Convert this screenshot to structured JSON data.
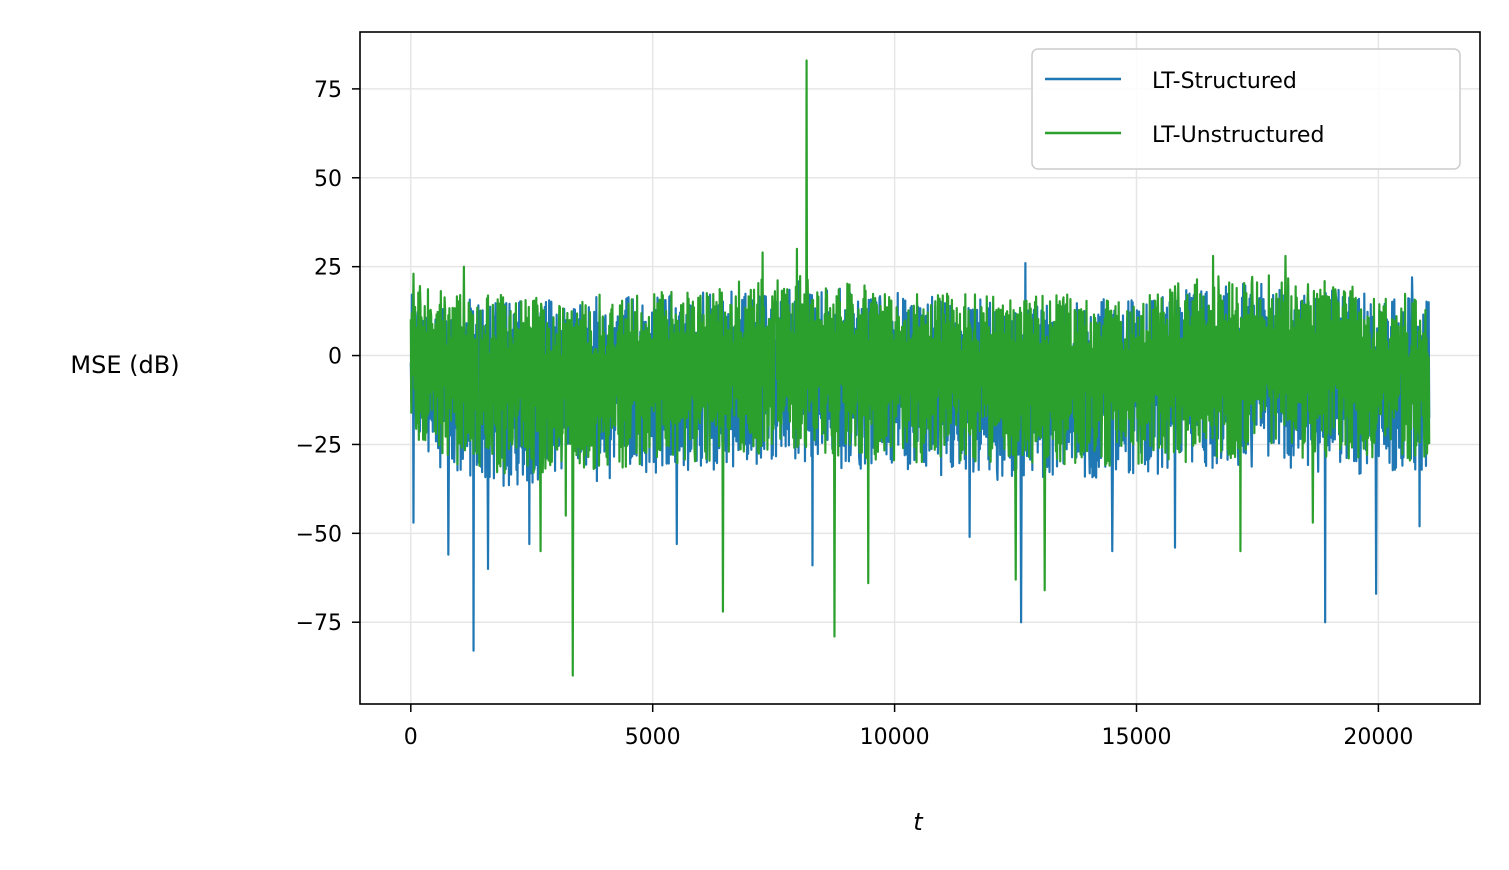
{
  "chart_data": {
    "type": "line",
    "title": "",
    "xlabel": "t",
    "ylabel": "MSE (dB)",
    "xlim": [
      -1050,
      22100
    ],
    "ylim": [
      -98,
      91
    ],
    "x_ticks": [
      0,
      5000,
      10000,
      15000,
      20000
    ],
    "x_tick_labels": [
      "0",
      "5000",
      "10000",
      "15000",
      "20000"
    ],
    "y_ticks": [
      75,
      50,
      25,
      0,
      -25,
      -50,
      -75
    ],
    "y_tick_labels": [
      "75",
      "50",
      "25",
      "0",
      "−25",
      "−50",
      "−75"
    ],
    "grid": true,
    "legend_position": "top-right",
    "x_range": [
      0,
      21050
    ],
    "series": [
      {
        "name": "LT-Structured",
        "color": "#1f77b4",
        "band": [
          {
            "x": 0,
            "lo": -28,
            "hi": 20
          },
          {
            "x": 1000,
            "lo": -35,
            "hi": 16
          },
          {
            "x": 2000,
            "lo": -37,
            "hi": 16
          },
          {
            "x": 3000,
            "lo": -37,
            "hi": 16
          },
          {
            "x": 4000,
            "lo": -35,
            "hi": 17
          },
          {
            "x": 5000,
            "lo": -33,
            "hi": 17
          },
          {
            "x": 6000,
            "lo": -33,
            "hi": 18
          },
          {
            "x": 7000,
            "lo": -31,
            "hi": 20
          },
          {
            "x": 8000,
            "lo": -31,
            "hi": 21
          },
          {
            "x": 9000,
            "lo": -32,
            "hi": 19
          },
          {
            "x": 10000,
            "lo": -33,
            "hi": 18
          },
          {
            "x": 11000,
            "lo": -34,
            "hi": 17
          },
          {
            "x": 12000,
            "lo": -35,
            "hi": 16
          },
          {
            "x": 13000,
            "lo": -35,
            "hi": 16
          },
          {
            "x": 14000,
            "lo": -35,
            "hi": 16
          },
          {
            "x": 15000,
            "lo": -34,
            "hi": 17
          },
          {
            "x": 16000,
            "lo": -33,
            "hi": 19
          },
          {
            "x": 17000,
            "lo": -32,
            "hi": 20
          },
          {
            "x": 18000,
            "lo": -32,
            "hi": 21
          },
          {
            "x": 19000,
            "lo": -33,
            "hi": 19
          },
          {
            "x": 20000,
            "lo": -34,
            "hi": 17
          },
          {
            "x": 21050,
            "lo": -33,
            "hi": 16
          }
        ],
        "spikes": [
          {
            "x": 50,
            "y": -47
          },
          {
            "x": 780,
            "y": -56
          },
          {
            "x": 1300,
            "y": -83
          },
          {
            "x": 1600,
            "y": -60
          },
          {
            "x": 2450,
            "y": -53
          },
          {
            "x": 5500,
            "y": -53
          },
          {
            "x": 8300,
            "y": -59
          },
          {
            "x": 11550,
            "y": -51
          },
          {
            "x": 12620,
            "y": -75
          },
          {
            "x": 14500,
            "y": -55
          },
          {
            "x": 15800,
            "y": -54
          },
          {
            "x": 18900,
            "y": -75
          },
          {
            "x": 19950,
            "y": -67
          },
          {
            "x": 20850,
            "y": -48
          },
          {
            "x": 12700,
            "y": 26
          },
          {
            "x": 20700,
            "y": 22
          }
        ]
      },
      {
        "name": "LT-Unstructured",
        "color": "#2ca02c",
        "band": [
          {
            "x": 0,
            "lo": -25,
            "hi": 21
          },
          {
            "x": 1000,
            "lo": -32,
            "hi": 18
          },
          {
            "x": 2000,
            "lo": -34,
            "hi": 17
          },
          {
            "x": 3000,
            "lo": -34,
            "hi": 17
          },
          {
            "x": 4000,
            "lo": -33,
            "hi": 18
          },
          {
            "x": 5000,
            "lo": -31,
            "hi": 18
          },
          {
            "x": 6000,
            "lo": -30,
            "hi": 19
          },
          {
            "x": 7000,
            "lo": -28,
            "hi": 22
          },
          {
            "x": 8000,
            "lo": -28,
            "hi": 24
          },
          {
            "x": 9000,
            "lo": -29,
            "hi": 21
          },
          {
            "x": 10000,
            "lo": -30,
            "hi": 19
          },
          {
            "x": 11000,
            "lo": -31,
            "hi": 18
          },
          {
            "x": 12000,
            "lo": -32,
            "hi": 17
          },
          {
            "x": 13000,
            "lo": -32,
            "hi": 17
          },
          {
            "x": 14000,
            "lo": -32,
            "hi": 18
          },
          {
            "x": 15000,
            "lo": -31,
            "hi": 19
          },
          {
            "x": 16000,
            "lo": -30,
            "hi": 21
          },
          {
            "x": 17000,
            "lo": -29,
            "hi": 23
          },
          {
            "x": 18000,
            "lo": -29,
            "hi": 23
          },
          {
            "x": 19000,
            "lo": -30,
            "hi": 21
          },
          {
            "x": 20000,
            "lo": -31,
            "hi": 18
          },
          {
            "x": 21050,
            "lo": -30,
            "hi": 17
          }
        ],
        "spikes": [
          {
            "x": 8180,
            "y": 83
          },
          {
            "x": 3350,
            "y": -90
          },
          {
            "x": 8760,
            "y": -79
          },
          {
            "x": 6450,
            "y": -72
          },
          {
            "x": 13100,
            "y": -66
          },
          {
            "x": 9450,
            "y": -64
          },
          {
            "x": 12500,
            "y": -63
          },
          {
            "x": 3200,
            "y": -45
          },
          {
            "x": 2680,
            "y": -55
          },
          {
            "x": 17150,
            "y": -55
          },
          {
            "x": 18650,
            "y": -47
          },
          {
            "x": 7270,
            "y": 29
          },
          {
            "x": 7980,
            "y": 30
          },
          {
            "x": 16580,
            "y": 28
          },
          {
            "x": 18080,
            "y": 28
          },
          {
            "x": 1100,
            "y": 25
          },
          {
            "x": 60,
            "y": 23
          }
        ]
      }
    ]
  }
}
